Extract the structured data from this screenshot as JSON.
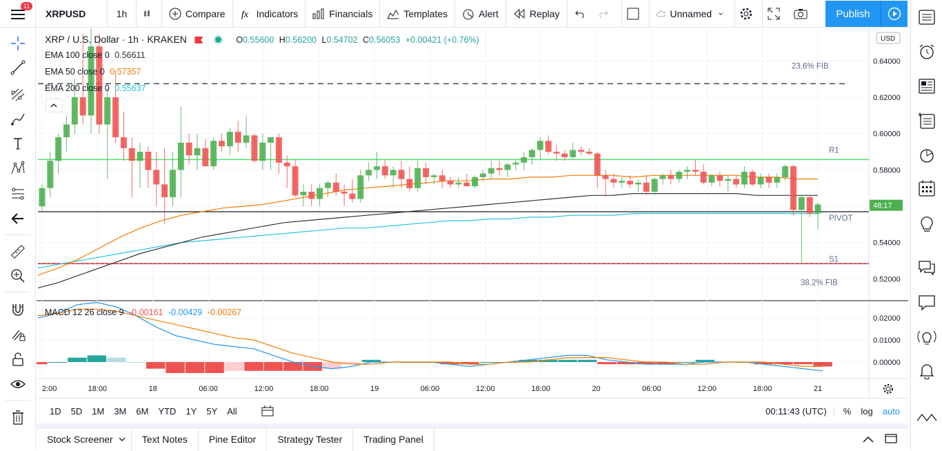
{
  "topbar": {
    "notifications": "11",
    "symbol": "XRPUSD",
    "interval": "1h",
    "compare": "Compare",
    "indicators": "Indicators",
    "financials": "Financials",
    "templates": "Templates",
    "alert": "Alert",
    "replay": "Replay",
    "layout_name": "Unnamed",
    "publish": "Publish"
  },
  "legend": {
    "title": "XRP / U.S. Dollar · 1h · KRAKEN",
    "o_label": "O",
    "o": "0.55600",
    "h_label": "H",
    "h": "0.56200",
    "l_label": "L",
    "l": "0.54702",
    "c_label": "C",
    "c": "0.56053",
    "change": "+0.00421 (+0.76%)",
    "ema100_label": "EMA 100 close 0",
    "ema100": "0.56611",
    "ema50_label": "EMA 50 close 0",
    "ema50": "0.57357",
    "ema200_label": "EMA 200 close 0",
    "ema200": "0.55637",
    "macd_label": "MACD 12 26 close 9",
    "macd_hist": "-0.00161",
    "macd": "-0.00429",
    "macd_signal": "-0.00267"
  },
  "chart_data": {
    "type": "candlestick",
    "symbol": "XRP / U.S. Dollar",
    "interval": "1h",
    "exchange": "KRAKEN",
    "currency": "USD",
    "ylim": [
      0.508,
      0.658
    ],
    "y_ticks": [
      "0.64000",
      "0.62000",
      "0.60000",
      "0.58000",
      "0.56000",
      "0.54000",
      "0.52000"
    ],
    "y_tick_values": [
      0.64,
      0.62,
      0.6,
      0.58,
      0.56,
      0.54,
      0.52
    ],
    "x_labels": [
      "2:00",
      "18:00",
      "18",
      "06:00",
      "12:00",
      "18:00",
      "19",
      "06:00",
      "12:00",
      "18:00",
      "20",
      "06:00",
      "12:00",
      "18:00",
      "21"
    ],
    "levels": [
      {
        "name": "23.6% FIB",
        "value": 0.6275
      },
      {
        "name": "R1",
        "value": 0.5857
      },
      {
        "name": "PIVOT",
        "value": 0.557
      },
      {
        "name": "S1",
        "value": 0.5284
      },
      {
        "name": "38.2% FIB",
        "value": 0.5284
      }
    ],
    "current_price": "0.56053",
    "countdown": "48:17",
    "candles": [
      [
        0.56,
        0.572,
        0.557,
        0.57
      ],
      [
        0.57,
        0.59,
        0.565,
        0.585
      ],
      [
        0.585,
        0.6,
        0.578,
        0.598
      ],
      [
        0.598,
        0.61,
        0.59,
        0.605
      ],
      [
        0.605,
        0.63,
        0.6,
        0.62
      ],
      [
        0.62,
        0.655,
        0.605,
        0.61
      ],
      [
        0.61,
        0.66,
        0.6,
        0.648
      ],
      [
        0.648,
        0.655,
        0.6,
        0.605
      ],
      [
        0.605,
        0.625,
        0.575,
        0.62
      ],
      [
        0.62,
        0.635,
        0.595,
        0.598
      ],
      [
        0.598,
        0.612,
        0.585,
        0.592
      ],
      [
        0.592,
        0.598,
        0.565,
        0.585
      ],
      [
        0.585,
        0.595,
        0.57,
        0.59
      ],
      [
        0.59,
        0.593,
        0.57,
        0.58
      ],
      [
        0.58,
        0.59,
        0.56,
        0.572
      ],
      [
        0.572,
        0.592,
        0.55,
        0.565
      ],
      [
        0.565,
        0.59,
        0.56,
        0.58
      ],
      [
        0.58,
        0.615,
        0.565,
        0.595
      ],
      [
        0.595,
        0.6,
        0.583,
        0.588
      ],
      [
        0.588,
        0.6,
        0.58,
        0.592
      ],
      [
        0.592,
        0.597,
        0.582,
        0.582
      ],
      [
        0.582,
        0.598,
        0.58,
        0.596
      ],
      [
        0.596,
        0.6,
        0.59,
        0.593
      ],
      [
        0.593,
        0.603,
        0.588,
        0.601
      ],
      [
        0.601,
        0.607,
        0.59,
        0.595
      ],
      [
        0.595,
        0.61,
        0.592,
        0.599
      ],
      [
        0.599,
        0.6,
        0.584,
        0.585
      ],
      [
        0.585,
        0.6,
        0.58,
        0.595
      ],
      [
        0.595,
        0.598,
        0.58,
        0.598
      ],
      [
        0.598,
        0.6,
        0.578,
        0.584
      ],
      [
        0.584,
        0.588,
        0.57,
        0.582
      ],
      [
        0.582,
        0.586,
        0.565,
        0.566
      ],
      [
        0.566,
        0.572,
        0.56,
        0.568
      ],
      [
        0.568,
        0.572,
        0.56,
        0.564
      ],
      [
        0.564,
        0.572,
        0.56,
        0.57
      ],
      [
        0.57,
        0.574,
        0.565,
        0.573
      ],
      [
        0.573,
        0.578,
        0.566,
        0.568
      ],
      [
        0.568,
        0.572,
        0.56,
        0.567
      ],
      [
        0.567,
        0.575,
        0.562,
        0.564
      ],
      [
        0.564,
        0.58,
        0.562,
        0.577
      ],
      [
        0.577,
        0.584,
        0.574,
        0.58
      ],
      [
        0.58,
        0.59,
        0.575,
        0.582
      ],
      [
        0.582,
        0.586,
        0.575,
        0.577
      ],
      [
        0.577,
        0.582,
        0.57,
        0.58
      ],
      [
        0.58,
        0.585,
        0.57,
        0.575
      ],
      [
        0.575,
        0.582,
        0.568,
        0.57
      ],
      [
        0.57,
        0.585,
        0.568,
        0.581
      ],
      [
        0.581,
        0.584,
        0.572,
        0.576
      ],
      [
        0.576,
        0.578,
        0.572,
        0.577
      ],
      [
        0.577,
        0.58,
        0.57,
        0.574
      ],
      [
        0.574,
        0.576,
        0.57,
        0.572
      ],
      [
        0.572,
        0.576,
        0.57,
        0.573
      ],
      [
        0.573,
        0.578,
        0.571,
        0.571
      ],
      [
        0.571,
        0.577,
        0.57,
        0.576
      ],
      [
        0.576,
        0.58,
        0.574,
        0.578
      ],
      [
        0.578,
        0.585,
        0.575,
        0.581
      ],
      [
        0.581,
        0.585,
        0.577,
        0.58
      ],
      [
        0.58,
        0.584,
        0.576,
        0.583
      ],
      [
        0.583,
        0.586,
        0.58,
        0.584
      ],
      [
        0.584,
        0.59,
        0.58,
        0.587
      ],
      [
        0.587,
        0.592,
        0.583,
        0.591
      ],
      [
        0.591,
        0.598,
        0.586,
        0.596
      ],
      [
        0.596,
        0.599,
        0.588,
        0.59
      ],
      [
        0.59,
        0.594,
        0.585,
        0.589
      ],
      [
        0.589,
        0.591,
        0.585,
        0.587
      ],
      [
        0.587,
        0.595,
        0.586,
        0.591
      ],
      [
        0.591,
        0.593,
        0.588,
        0.59
      ],
      [
        0.59,
        0.592,
        0.588,
        0.589
      ],
      [
        0.589,
        0.59,
        0.57,
        0.577
      ],
      [
        0.577,
        0.58,
        0.565,
        0.575
      ],
      [
        0.575,
        0.578,
        0.57,
        0.573
      ],
      [
        0.573,
        0.576,
        0.57,
        0.574
      ],
      [
        0.574,
        0.577,
        0.57,
        0.572
      ],
      [
        0.572,
        0.575,
        0.568,
        0.573
      ],
      [
        0.573,
        0.577,
        0.566,
        0.568
      ],
      [
        0.568,
        0.576,
        0.566,
        0.575
      ],
      [
        0.575,
        0.578,
        0.572,
        0.577
      ],
      [
        0.577,
        0.58,
        0.572,
        0.575
      ],
      [
        0.575,
        0.58,
        0.573,
        0.579
      ],
      [
        0.579,
        0.582,
        0.575,
        0.58
      ],
      [
        0.58,
        0.586,
        0.577,
        0.579
      ],
      [
        0.579,
        0.583,
        0.572,
        0.573
      ],
      [
        0.573,
        0.578,
        0.571,
        0.577
      ],
      [
        0.577,
        0.579,
        0.571,
        0.574
      ],
      [
        0.574,
        0.577,
        0.568,
        0.575
      ],
      [
        0.575,
        0.577,
        0.57,
        0.572
      ],
      [
        0.572,
        0.582,
        0.57,
        0.579
      ],
      [
        0.579,
        0.58,
        0.571,
        0.572
      ],
      [
        0.572,
        0.578,
        0.57,
        0.576
      ],
      [
        0.576,
        0.578,
        0.57,
        0.573
      ],
      [
        0.573,
        0.578,
        0.57,
        0.576
      ],
      [
        0.576,
        0.583,
        0.574,
        0.582
      ],
      [
        0.582,
        0.583,
        0.555,
        0.558
      ],
      [
        0.558,
        0.566,
        0.528,
        0.565
      ],
      [
        0.565,
        0.566,
        0.554,
        0.556
      ],
      [
        0.556,
        0.562,
        0.547,
        0.561
      ]
    ],
    "ema50": [
      0.522,
      0.526,
      0.531,
      0.537,
      0.543,
      0.548,
      0.552,
      0.555,
      0.557,
      0.559,
      0.56,
      0.561,
      0.563,
      0.565,
      0.567,
      0.569,
      0.57,
      0.571,
      0.572,
      0.573,
      0.574,
      0.574,
      0.575,
      0.575,
      0.576,
      0.576,
      0.577,
      0.577,
      0.577,
      0.576,
      0.577,
      0.577,
      0.577,
      0.577,
      0.577,
      0.576,
      0.576,
      0.575,
      0.575
    ],
    "ema100": [
      0.515,
      0.518,
      0.522,
      0.526,
      0.53,
      0.534,
      0.537,
      0.54,
      0.543,
      0.545,
      0.547,
      0.549,
      0.551,
      0.552,
      0.553,
      0.554,
      0.555,
      0.556,
      0.557,
      0.558,
      0.559,
      0.56,
      0.561,
      0.562,
      0.563,
      0.564,
      0.565,
      0.566,
      0.566,
      0.567,
      0.567,
      0.567,
      0.567,
      0.567,
      0.567,
      0.566,
      0.566,
      0.566,
      0.566
    ],
    "ema200": [
      0.526,
      0.528,
      0.53,
      0.532,
      0.534,
      0.536,
      0.538,
      0.54,
      0.541,
      0.542,
      0.543,
      0.544,
      0.545,
      0.546,
      0.547,
      0.548,
      0.548,
      0.549,
      0.55,
      0.551,
      0.552,
      0.552,
      0.553,
      0.553,
      0.554,
      0.554,
      0.555,
      0.555,
      0.555,
      0.556,
      0.556,
      0.556,
      0.556,
      0.556,
      0.556,
      0.556,
      0.556,
      0.556,
      0.556
    ],
    "macd": {
      "ylim": [
        -0.0075,
        0.0275
      ],
      "y_ticks": [
        "0.02000",
        "0.01000",
        "0.00000"
      ],
      "y_tick_values": [
        0.02,
        0.01,
        0.0
      ],
      "macd_line": [
        0.02,
        0.022,
        0.026,
        0.027,
        0.025,
        0.021,
        0.016,
        0.012,
        0.01,
        0.008,
        0.007,
        0.006,
        0.003,
        0.0,
        -0.002,
        -0.003,
        -0.002,
        0.0,
        0.0,
        0.0,
        0.0,
        -0.001,
        -0.002,
        -0.001,
        0.0,
        0.001,
        0.002,
        0.003,
        0.003,
        0.001,
        0.0,
        -0.001,
        -0.001,
        -0.001,
        0.0,
        0.0,
        0.0,
        -0.001,
        -0.002,
        -0.003,
        -0.004
      ],
      "signal_line": [
        0.021,
        0.022,
        0.024,
        0.024,
        0.023,
        0.021,
        0.019,
        0.017,
        0.015,
        0.013,
        0.011,
        0.01,
        0.007,
        0.004,
        0.002,
        0.0,
        -0.001,
        -0.001,
        0.0,
        0.0,
        0.0,
        0.0,
        -0.001,
        -0.001,
        0.0,
        0.0,
        0.001,
        0.002,
        0.002,
        0.002,
        0.001,
        0.0,
        0.0,
        -0.001,
        -0.001,
        0.0,
        0.0,
        0.0,
        -0.001,
        -0.002,
        -0.002
      ],
      "histogram": [
        -0.001,
        0.0,
        0.002,
        0.003,
        0.002,
        0.0,
        -0.003,
        -0.005,
        -0.005,
        -0.005,
        -0.004,
        -0.004,
        -0.004,
        -0.004,
        -0.004,
        -0.003,
        -0.001,
        0.001,
        0.0,
        0.0,
        0.0,
        -0.001,
        -0.001,
        0.0,
        0.0,
        0.001,
        0.001,
        0.001,
        0.001,
        -0.001,
        -0.001,
        -0.001,
        -0.001,
        0.0,
        0.001,
        0.0,
        0.0,
        -0.001,
        -0.001,
        -0.001,
        -0.002
      ]
    }
  },
  "bottombar": {
    "timeframes": [
      "1D",
      "5D",
      "1M",
      "3M",
      "6M",
      "YTD",
      "1Y",
      "5Y",
      "All"
    ],
    "clock": "00:11:43 (UTC)",
    "percent": "%",
    "log": "log",
    "auto": "auto"
  },
  "panel": {
    "tabs": [
      "Stock Screener",
      "Text Notes",
      "Pine Editor",
      "Strategy Tester",
      "Trading Panel"
    ]
  },
  "colors": {
    "up": "#26a69a",
    "up_light": "#4caf50",
    "down": "#ef5350",
    "ema50": "#f57c00",
    "ema100": "#333333",
    "ema200": "#26c6da",
    "accent": "#2196f3",
    "r1": "#4cdf6a",
    "s1": "#ef5350"
  }
}
